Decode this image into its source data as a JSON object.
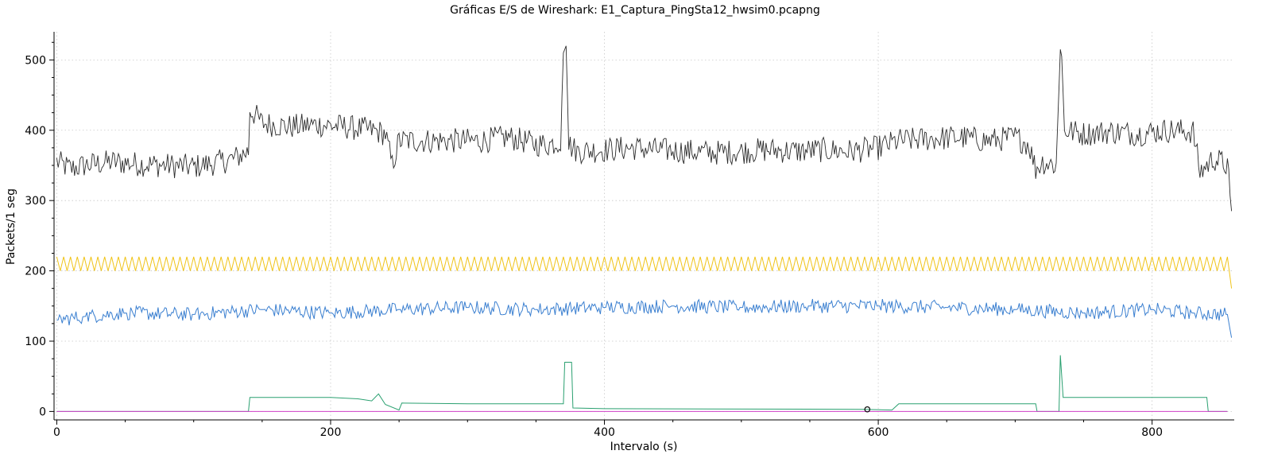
{
  "chart_data": {
    "type": "line",
    "title": "Gráficas E/S de Wireshark: E1_Captura_PingSta12_hwsim0.pcapng",
    "xlabel": "Intervalo (s)",
    "ylabel": "Packets/1 seg",
    "xlim": [
      -2,
      860
    ],
    "ylim": [
      -12,
      540
    ],
    "x_ticks": [
      0,
      200,
      400,
      600,
      800
    ],
    "y_ticks": [
      0,
      100,
      200,
      300,
      400,
      500
    ],
    "grid": true,
    "series": [
      {
        "color": "#2b2b2b",
        "points": [
          [
            0,
            355
          ],
          [
            10,
            345
          ],
          [
            20,
            350
          ],
          [
            40,
            355
          ],
          [
            60,
            352
          ],
          [
            80,
            350
          ],
          [
            100,
            348
          ],
          [
            120,
            355
          ],
          [
            130,
            360
          ],
          [
            140,
            370
          ],
          [
            141,
            430
          ],
          [
            150,
            410
          ],
          [
            170,
            405
          ],
          [
            190,
            408
          ],
          [
            210,
            405
          ],
          [
            230,
            400
          ],
          [
            240,
            395
          ],
          [
            245,
            350
          ],
          [
            250,
            385
          ],
          [
            270,
            385
          ],
          [
            290,
            385
          ],
          [
            310,
            385
          ],
          [
            330,
            390
          ],
          [
            350,
            380
          ],
          [
            360,
            380
          ],
          [
            368,
            385
          ],
          [
            370,
            510
          ],
          [
            372,
            520
          ],
          [
            374,
            380
          ],
          [
            380,
            370
          ],
          [
            400,
            372
          ],
          [
            420,
            375
          ],
          [
            440,
            372
          ],
          [
            460,
            370
          ],
          [
            480,
            368
          ],
          [
            500,
            370
          ],
          [
            520,
            372
          ],
          [
            540,
            370
          ],
          [
            560,
            372
          ],
          [
            580,
            370
          ],
          [
            600,
            375
          ],
          [
            615,
            385
          ],
          [
            640,
            388
          ],
          [
            660,
            390
          ],
          [
            680,
            385
          ],
          [
            700,
            390
          ],
          [
            710,
            380
          ],
          [
            715,
            345
          ],
          [
            720,
            355
          ],
          [
            730,
            350
          ],
          [
            733,
            515
          ],
          [
            734,
            505
          ],
          [
            736,
            400
          ],
          [
            750,
            395
          ],
          [
            770,
            398
          ],
          [
            790,
            395
          ],
          [
            810,
            400
          ],
          [
            830,
            398
          ],
          [
            835,
            340
          ],
          [
            845,
            360
          ],
          [
            855,
            350
          ],
          [
            858,
            285
          ]
        ]
      },
      {
        "color": "#f0c419",
        "points": [
          [
            0,
            200
          ],
          [
            855,
            200
          ],
          [
            858,
            175
          ]
        ]
      },
      {
        "color": "#3a7fd0",
        "points": [
          [
            0,
            130
          ],
          [
            20,
            135
          ],
          [
            50,
            140
          ],
          [
            100,
            138
          ],
          [
            150,
            145
          ],
          [
            200,
            140
          ],
          [
            250,
            145
          ],
          [
            300,
            148
          ],
          [
            350,
            145
          ],
          [
            400,
            148
          ],
          [
            450,
            150
          ],
          [
            500,
            148
          ],
          [
            550,
            150
          ],
          [
            600,
            150
          ],
          [
            650,
            148
          ],
          [
            700,
            145
          ],
          [
            750,
            140
          ],
          [
            800,
            145
          ],
          [
            830,
            140
          ],
          [
            855,
            138
          ],
          [
            858,
            105
          ]
        ]
      },
      {
        "color": "#2aa070",
        "points": [
          [
            0,
            0
          ],
          [
            140,
            0
          ],
          [
            141,
            20
          ],
          [
            200,
            20
          ],
          [
            220,
            18
          ],
          [
            230,
            15
          ],
          [
            235,
            25
          ],
          [
            240,
            10
          ],
          [
            250,
            2
          ],
          [
            252,
            12
          ],
          [
            300,
            11
          ],
          [
            370,
            11
          ],
          [
            371,
            70
          ],
          [
            376,
            70
          ],
          [
            377,
            5
          ],
          [
            400,
            4
          ],
          [
            590,
            3
          ],
          [
            610,
            2
          ],
          [
            615,
            11
          ],
          [
            715,
            11
          ],
          [
            716,
            0
          ],
          [
            732,
            0
          ],
          [
            733,
            80
          ],
          [
            735,
            20
          ],
          [
            840,
            20
          ],
          [
            841,
            0
          ],
          [
            855,
            0
          ]
        ]
      },
      {
        "color": "#d040c8",
        "points": [
          [
            0,
            0
          ],
          [
            855,
            0
          ]
        ]
      }
    ],
    "marker": {
      "x": 592,
      "y": 3
    }
  }
}
